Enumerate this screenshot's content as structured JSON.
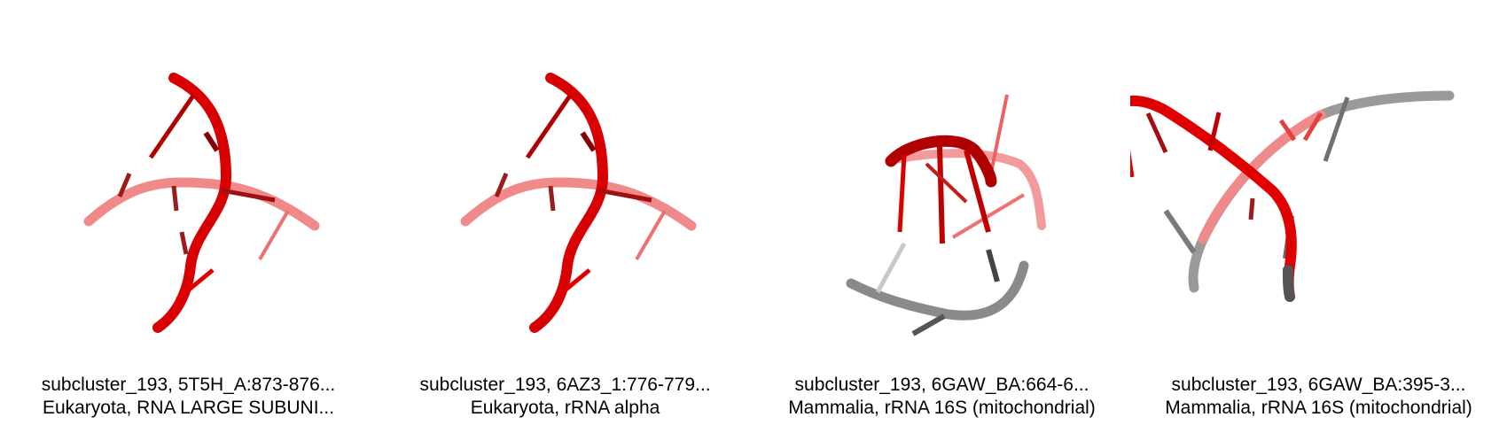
{
  "panels": [
    {
      "line1": "subcluster_193, 5T5H_A:873-876...",
      "line2": "Eukaryota, RNA LARGE SUBUNI..."
    },
    {
      "line1": "subcluster_193, 6AZ3_1:776-779...",
      "line2": "Eukaryota, rRNA alpha"
    },
    {
      "line1": "subcluster_193, 6GAW_BA:664-6...",
      "line2": "Mammalia, rRNA 16S (mitochondrial)"
    },
    {
      "line1": "subcluster_193, 6GAW_BA:395-3...",
      "line2": "Mammalia, rRNA 16S (mitochondrial)"
    }
  ],
  "colors": {
    "strand_red": "#e00000",
    "strand_red_dark": "#8a0000",
    "strand_pink": "#f08080",
    "strand_grey": "#8e8e8e",
    "strand_grey_dark": "#555555"
  }
}
